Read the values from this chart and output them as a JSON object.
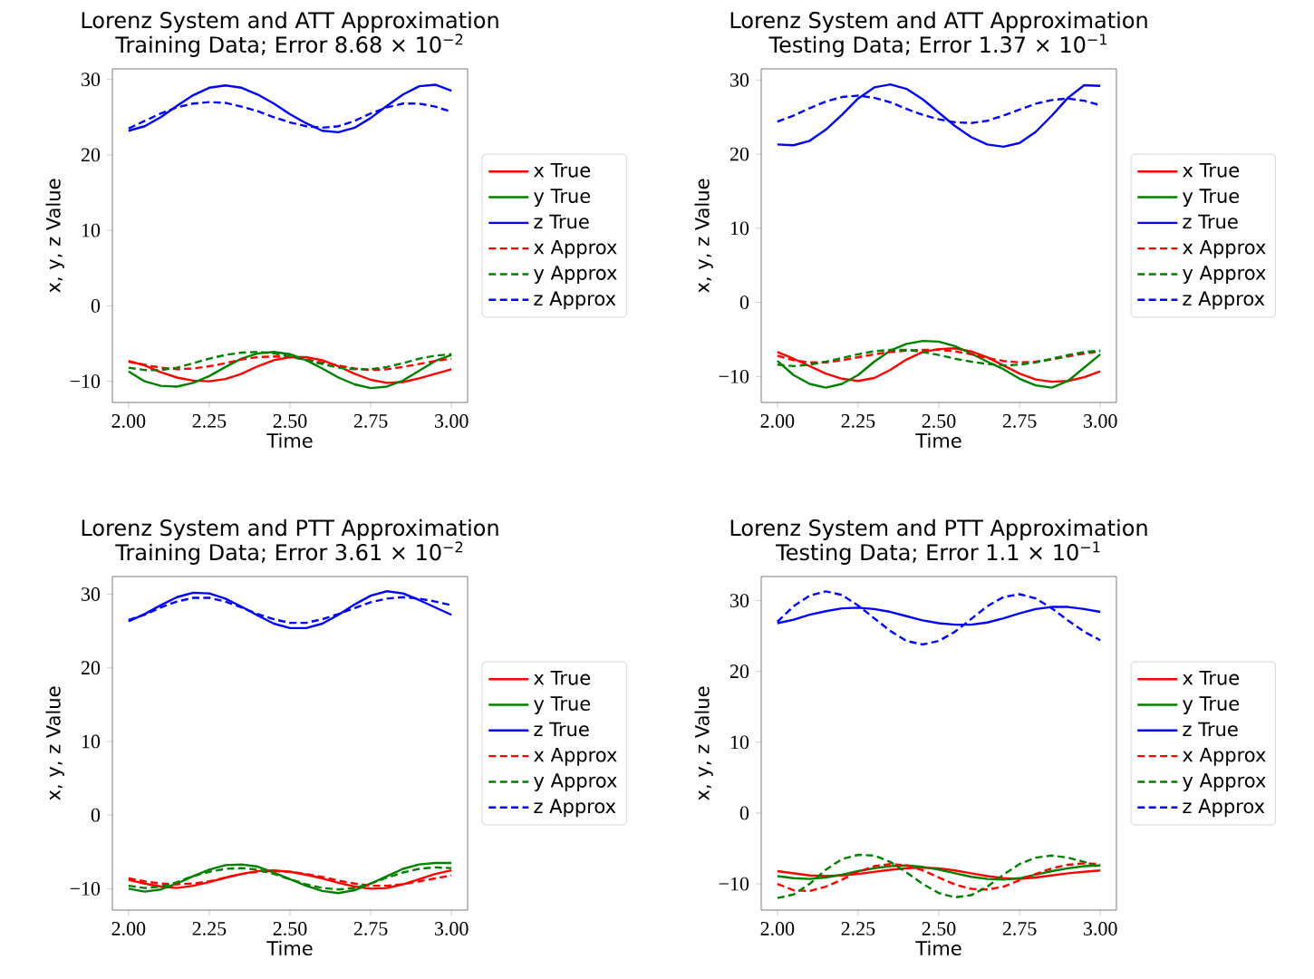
{
  "chart_data": [
    {
      "type": "line",
      "title": "Lorenz System and ATT Approximation",
      "subtitle": "Training Data; Error 8.68 × 10$^{−2}$",
      "xlabel": "Time",
      "ylabel": "x, y, z Value",
      "xlim": [
        1.95,
        3.05
      ],
      "ylim": [
        -12.8,
        31.4
      ],
      "xticks": [
        {
          "value": 2.0,
          "label": "2.00"
        },
        {
          "value": 2.25,
          "label": "2.25"
        },
        {
          "value": 2.5,
          "label": "2.50"
        },
        {
          "value": 2.75,
          "label": "2.75"
        },
        {
          "value": 3.0,
          "label": "3.00"
        }
      ],
      "yticks": [
        {
          "value": -10,
          "label": "−10"
        },
        {
          "value": 0,
          "label": "0"
        },
        {
          "value": 10,
          "label": "10"
        },
        {
          "value": 20,
          "label": "20"
        },
        {
          "value": 30,
          "label": "30"
        }
      ],
      "legend": "right",
      "grid": false,
      "x": [
        2.0,
        2.05,
        2.1,
        2.15,
        2.2,
        2.25,
        2.3,
        2.35,
        2.4,
        2.45,
        2.5,
        2.55,
        2.6,
        2.65,
        2.7,
        2.75,
        2.8,
        2.85,
        2.9,
        2.95,
        3.0
      ],
      "series": [
        {
          "name": "x True",
          "color": "#ff0000",
          "line_style": "solid",
          "values": [
            -7.3,
            -7.9,
            -8.8,
            -9.5,
            -9.9,
            -10.0,
            -9.7,
            -9.0,
            -8.0,
            -7.2,
            -6.8,
            -6.8,
            -7.2,
            -8.0,
            -9.0,
            -9.8,
            -10.2,
            -10.1,
            -9.6,
            -9.0,
            -8.4
          ]
        },
        {
          "name": "y True",
          "color": "#008000",
          "line_style": "solid",
          "values": [
            -8.7,
            -10.0,
            -10.6,
            -10.7,
            -10.2,
            -9.3,
            -8.1,
            -7.0,
            -6.3,
            -6.1,
            -6.4,
            -7.2,
            -8.3,
            -9.5,
            -10.4,
            -10.9,
            -10.7,
            -9.9,
            -8.6,
            -7.3,
            -6.5
          ]
        },
        {
          "name": "z True",
          "color": "#0000ff",
          "line_style": "solid",
          "values": [
            23.2,
            23.8,
            25.0,
            26.5,
            27.9,
            28.9,
            29.2,
            28.9,
            28.0,
            26.8,
            25.4,
            24.2,
            23.2,
            23.0,
            23.6,
            24.9,
            26.5,
            28.0,
            29.1,
            29.3,
            28.5
          ]
        },
        {
          "name": "x Approx",
          "color": "#ff0000",
          "line_style": "dashed",
          "values": [
            -7.4,
            -7.8,
            -8.2,
            -8.4,
            -8.3,
            -8.0,
            -7.6,
            -7.1,
            -6.8,
            -6.7,
            -6.8,
            -7.1,
            -7.5,
            -7.9,
            -8.3,
            -8.5,
            -8.4,
            -8.1,
            -7.7,
            -7.3,
            -7.0
          ]
        },
        {
          "name": "y Approx",
          "color": "#008000",
          "line_style": "dashed",
          "values": [
            -8.2,
            -8.5,
            -8.5,
            -8.2,
            -7.6,
            -7.0,
            -6.5,
            -6.2,
            -6.1,
            -6.3,
            -6.7,
            -7.2,
            -7.7,
            -8.2,
            -8.4,
            -8.4,
            -8.1,
            -7.6,
            -7.0,
            -6.6,
            -6.4
          ]
        },
        {
          "name": "z Approx",
          "color": "#0000ff",
          "line_style": "dashed",
          "values": [
            23.5,
            24.5,
            25.5,
            26.3,
            26.8,
            27.0,
            26.9,
            26.4,
            25.8,
            25.0,
            24.3,
            23.8,
            23.6,
            23.8,
            24.5,
            25.5,
            26.3,
            26.8,
            26.8,
            26.4,
            25.7
          ]
        }
      ]
    },
    {
      "type": "line",
      "title": "Lorenz System and ATT Approximation",
      "subtitle": "Testing Data; Error 1.37 × 10$^{−1}$",
      "xlabel": "Time",
      "ylabel": "x, y, z Value",
      "xlim": [
        1.95,
        3.05
      ],
      "ylim": [
        -13.5,
        31.5
      ],
      "xticks": [
        {
          "value": 2.0,
          "label": "2.00"
        },
        {
          "value": 2.25,
          "label": "2.25"
        },
        {
          "value": 2.5,
          "label": "2.50"
        },
        {
          "value": 2.75,
          "label": "2.75"
        },
        {
          "value": 3.0,
          "label": "3.00"
        }
      ],
      "yticks": [
        {
          "value": -10,
          "label": "−10"
        },
        {
          "value": 0,
          "label": "0"
        },
        {
          "value": 10,
          "label": "10"
        },
        {
          "value": 20,
          "label": "20"
        },
        {
          "value": 30,
          "label": "30"
        }
      ],
      "legend": "right",
      "grid": false,
      "x": [
        2.0,
        2.05,
        2.1,
        2.15,
        2.2,
        2.25,
        2.3,
        2.35,
        2.4,
        2.45,
        2.5,
        2.55,
        2.6,
        2.65,
        2.7,
        2.75,
        2.8,
        2.85,
        2.9,
        2.95,
        3.0
      ],
      "series": [
        {
          "name": "x True",
          "color": "#ff0000",
          "line_style": "solid",
          "values": [
            -6.7,
            -7.6,
            -8.6,
            -9.6,
            -10.3,
            -10.6,
            -10.2,
            -9.1,
            -7.7,
            -6.7,
            -6.3,
            -6.2,
            -6.6,
            -7.4,
            -8.5,
            -9.6,
            -10.4,
            -10.7,
            -10.6,
            -10.1,
            -9.3
          ]
        },
        {
          "name": "y True",
          "color": "#008000",
          "line_style": "solid",
          "values": [
            -7.9,
            -9.8,
            -11.0,
            -11.5,
            -11.0,
            -9.8,
            -8.0,
            -6.5,
            -5.6,
            -5.2,
            -5.3,
            -5.9,
            -6.9,
            -8.0,
            -9.0,
            -10.3,
            -11.2,
            -11.5,
            -10.6,
            -8.8,
            -7.0
          ]
        },
        {
          "name": "z True",
          "color": "#0000ff",
          "line_style": "solid",
          "values": [
            21.3,
            21.2,
            21.8,
            23.3,
            25.3,
            27.5,
            29.0,
            29.4,
            28.8,
            27.4,
            25.6,
            23.8,
            22.3,
            21.3,
            21.0,
            21.5,
            23.0,
            25.2,
            27.6,
            29.3,
            29.2
          ]
        },
        {
          "name": "x Approx",
          "color": "#ff0000",
          "line_style": "dashed",
          "values": [
            -7.2,
            -7.8,
            -8.1,
            -8.1,
            -7.8,
            -7.4,
            -7.0,
            -6.7,
            -6.5,
            -6.4,
            -6.4,
            -6.6,
            -7.0,
            -7.5,
            -7.9,
            -8.1,
            -8.0,
            -7.7,
            -7.3,
            -6.9,
            -6.6
          ]
        },
        {
          "name": "y Approx",
          "color": "#008000",
          "line_style": "dashed",
          "values": [
            -8.4,
            -8.6,
            -8.4,
            -8.0,
            -7.5,
            -7.0,
            -6.6,
            -6.4,
            -6.4,
            -6.7,
            -7.1,
            -7.6,
            -8.0,
            -8.3,
            -8.5,
            -8.4,
            -8.1,
            -7.6,
            -7.1,
            -6.7,
            -6.5
          ]
        },
        {
          "name": "z Approx",
          "color": "#0000ff",
          "line_style": "dashed",
          "values": [
            24.4,
            25.2,
            26.2,
            27.1,
            27.7,
            27.9,
            27.6,
            27.0,
            26.1,
            25.3,
            24.7,
            24.3,
            24.2,
            24.5,
            25.2,
            26.0,
            26.8,
            27.3,
            27.5,
            27.2,
            26.6
          ]
        }
      ]
    },
    {
      "type": "line",
      "title": "Lorenz System and PTT Approximation",
      "subtitle": "Training Data; Error 3.61 × 10$^{−2}$",
      "xlabel": "Time",
      "ylabel": "x, y, z Value",
      "xlim": [
        1.95,
        3.05
      ],
      "ylim": [
        -12.9,
        32.4
      ],
      "xticks": [
        {
          "value": 2.0,
          "label": "2.00"
        },
        {
          "value": 2.25,
          "label": "2.25"
        },
        {
          "value": 2.5,
          "label": "2.50"
        },
        {
          "value": 2.75,
          "label": "2.75"
        },
        {
          "value": 3.0,
          "label": "3.00"
        }
      ],
      "yticks": [
        {
          "value": -10,
          "label": "−10"
        },
        {
          "value": 0,
          "label": "0"
        },
        {
          "value": 10,
          "label": "10"
        },
        {
          "value": 20,
          "label": "20"
        },
        {
          "value": 30,
          "label": "30"
        }
      ],
      "legend": "right",
      "grid": false,
      "x": [
        2.0,
        2.05,
        2.1,
        2.15,
        2.2,
        2.25,
        2.3,
        2.35,
        2.4,
        2.45,
        2.5,
        2.55,
        2.6,
        2.65,
        2.7,
        2.75,
        2.8,
        2.85,
        2.9,
        2.95,
        3.0
      ],
      "series": [
        {
          "name": "x True",
          "color": "#ff0000",
          "line_style": "solid",
          "values": [
            -8.8,
            -9.3,
            -9.7,
            -9.9,
            -9.6,
            -9.1,
            -8.5,
            -8.0,
            -7.6,
            -7.5,
            -7.7,
            -8.1,
            -8.6,
            -9.2,
            -9.7,
            -10.0,
            -9.9,
            -9.4,
            -8.7,
            -8.0,
            -7.5
          ]
        },
        {
          "name": "y True",
          "color": "#008000",
          "line_style": "solid",
          "values": [
            -10.0,
            -10.4,
            -10.1,
            -9.3,
            -8.3,
            -7.4,
            -6.8,
            -6.7,
            -7.0,
            -7.8,
            -8.7,
            -9.6,
            -10.3,
            -10.6,
            -10.2,
            -9.3,
            -8.3,
            -7.3,
            -6.7,
            -6.5,
            -6.5
          ]
        },
        {
          "name": "z True",
          "color": "#0000ff",
          "line_style": "solid",
          "values": [
            26.3,
            27.3,
            28.5,
            29.6,
            30.2,
            30.1,
            29.4,
            28.3,
            27.1,
            26.0,
            25.4,
            25.4,
            26.0,
            27.2,
            28.6,
            29.8,
            30.4,
            30.1,
            29.2,
            28.2,
            27.2
          ]
        },
        {
          "name": "x Approx",
          "color": "#ff0000",
          "line_style": "dashed",
          "values": [
            -8.6,
            -9.0,
            -9.3,
            -9.4,
            -9.3,
            -9.0,
            -8.5,
            -8.0,
            -7.7,
            -7.6,
            -7.7,
            -8.0,
            -8.4,
            -8.9,
            -9.3,
            -9.6,
            -9.6,
            -9.4,
            -9.0,
            -8.6,
            -8.2
          ]
        },
        {
          "name": "y Approx",
          "color": "#008000",
          "line_style": "dashed",
          "values": [
            -9.6,
            -9.9,
            -9.7,
            -9.1,
            -8.3,
            -7.7,
            -7.3,
            -7.2,
            -7.4,
            -8.0,
            -8.7,
            -9.4,
            -9.9,
            -10.1,
            -9.9,
            -9.3,
            -8.5,
            -7.8,
            -7.3,
            -7.1,
            -7.2
          ]
        },
        {
          "name": "z Approx",
          "color": "#0000ff",
          "line_style": "dashed",
          "values": [
            26.5,
            27.2,
            28.2,
            29.0,
            29.5,
            29.5,
            29.0,
            28.2,
            27.3,
            26.6,
            26.1,
            26.1,
            26.6,
            27.3,
            28.1,
            28.9,
            29.4,
            29.6,
            29.4,
            29.0,
            28.5
          ]
        }
      ]
    },
    {
      "type": "line",
      "title": "Lorenz System and PTT Approximation",
      "subtitle": "Testing Data; Error 1.1 × 10$^{−1}$",
      "xlabel": "Time",
      "ylabel": "x, y, z Value",
      "xlim": [
        1.95,
        3.05
      ],
      "ylim": [
        -13.7,
        33.4
      ],
      "xticks": [
        {
          "value": 2.0,
          "label": "2.00"
        },
        {
          "value": 2.25,
          "label": "2.25"
        },
        {
          "value": 2.5,
          "label": "2.50"
        },
        {
          "value": 2.75,
          "label": "2.75"
        },
        {
          "value": 3.0,
          "label": "3.00"
        }
      ],
      "yticks": [
        {
          "value": -10,
          "label": "−10"
        },
        {
          "value": 0,
          "label": "0"
        },
        {
          "value": 10,
          "label": "10"
        },
        {
          "value": 20,
          "label": "20"
        },
        {
          "value": 30,
          "label": "30"
        }
      ],
      "legend": "right",
      "grid": false,
      "x": [
        2.0,
        2.05,
        2.1,
        2.15,
        2.2,
        2.25,
        2.3,
        2.35,
        2.4,
        2.45,
        2.5,
        2.55,
        2.6,
        2.65,
        2.7,
        2.75,
        2.8,
        2.85,
        2.9,
        2.95,
        3.0
      ],
      "series": [
        {
          "name": "x True",
          "color": "#ff0000",
          "line_style": "solid",
          "values": [
            -8.2,
            -8.5,
            -8.8,
            -8.9,
            -8.8,
            -8.6,
            -8.3,
            -8.0,
            -7.8,
            -7.7,
            -7.8,
            -8.1,
            -8.5,
            -8.9,
            -9.2,
            -9.3,
            -9.1,
            -8.8,
            -8.5,
            -8.3,
            -8.1
          ]
        },
        {
          "name": "y True",
          "color": "#008000",
          "line_style": "solid",
          "values": [
            -8.9,
            -9.2,
            -9.3,
            -9.1,
            -8.7,
            -8.2,
            -7.8,
            -7.5,
            -7.4,
            -7.6,
            -8.0,
            -8.5,
            -9.0,
            -9.3,
            -9.4,
            -9.2,
            -8.7,
            -8.2,
            -7.8,
            -7.5,
            -7.4
          ]
        },
        {
          "name": "z True",
          "color": "#0000ff",
          "line_style": "solid",
          "values": [
            26.8,
            27.3,
            28.0,
            28.5,
            28.9,
            29.0,
            28.8,
            28.4,
            27.8,
            27.2,
            26.8,
            26.6,
            26.6,
            26.9,
            27.5,
            28.2,
            28.8,
            29.1,
            29.1,
            28.8,
            28.4
          ]
        },
        {
          "name": "x Approx",
          "color": "#ff0000",
          "line_style": "dashed",
          "values": [
            -10.0,
            -10.9,
            -11.0,
            -10.4,
            -9.4,
            -8.3,
            -7.5,
            -7.2,
            -7.4,
            -8.1,
            -9.1,
            -10.1,
            -10.7,
            -10.8,
            -10.4,
            -9.5,
            -8.6,
            -7.8,
            -7.3,
            -7.1,
            -7.2
          ]
        },
        {
          "name": "y Approx",
          "color": "#008000",
          "line_style": "dashed",
          "values": [
            -12.0,
            -11.5,
            -10.0,
            -8.0,
            -6.5,
            -5.9,
            -6.0,
            -6.9,
            -8.4,
            -10.0,
            -11.3,
            -11.9,
            -11.6,
            -10.4,
            -8.7,
            -7.2,
            -6.3,
            -6.0,
            -6.3,
            -6.9,
            -7.6
          ]
        },
        {
          "name": "z Approx",
          "color": "#0000ff",
          "line_style": "dashed",
          "values": [
            27.0,
            29.2,
            30.7,
            31.3,
            30.8,
            29.3,
            27.5,
            25.7,
            24.3,
            23.8,
            24.3,
            25.6,
            27.4,
            29.2,
            30.5,
            30.9,
            30.3,
            28.9,
            27.2,
            25.6,
            24.4
          ]
        }
      ]
    }
  ]
}
